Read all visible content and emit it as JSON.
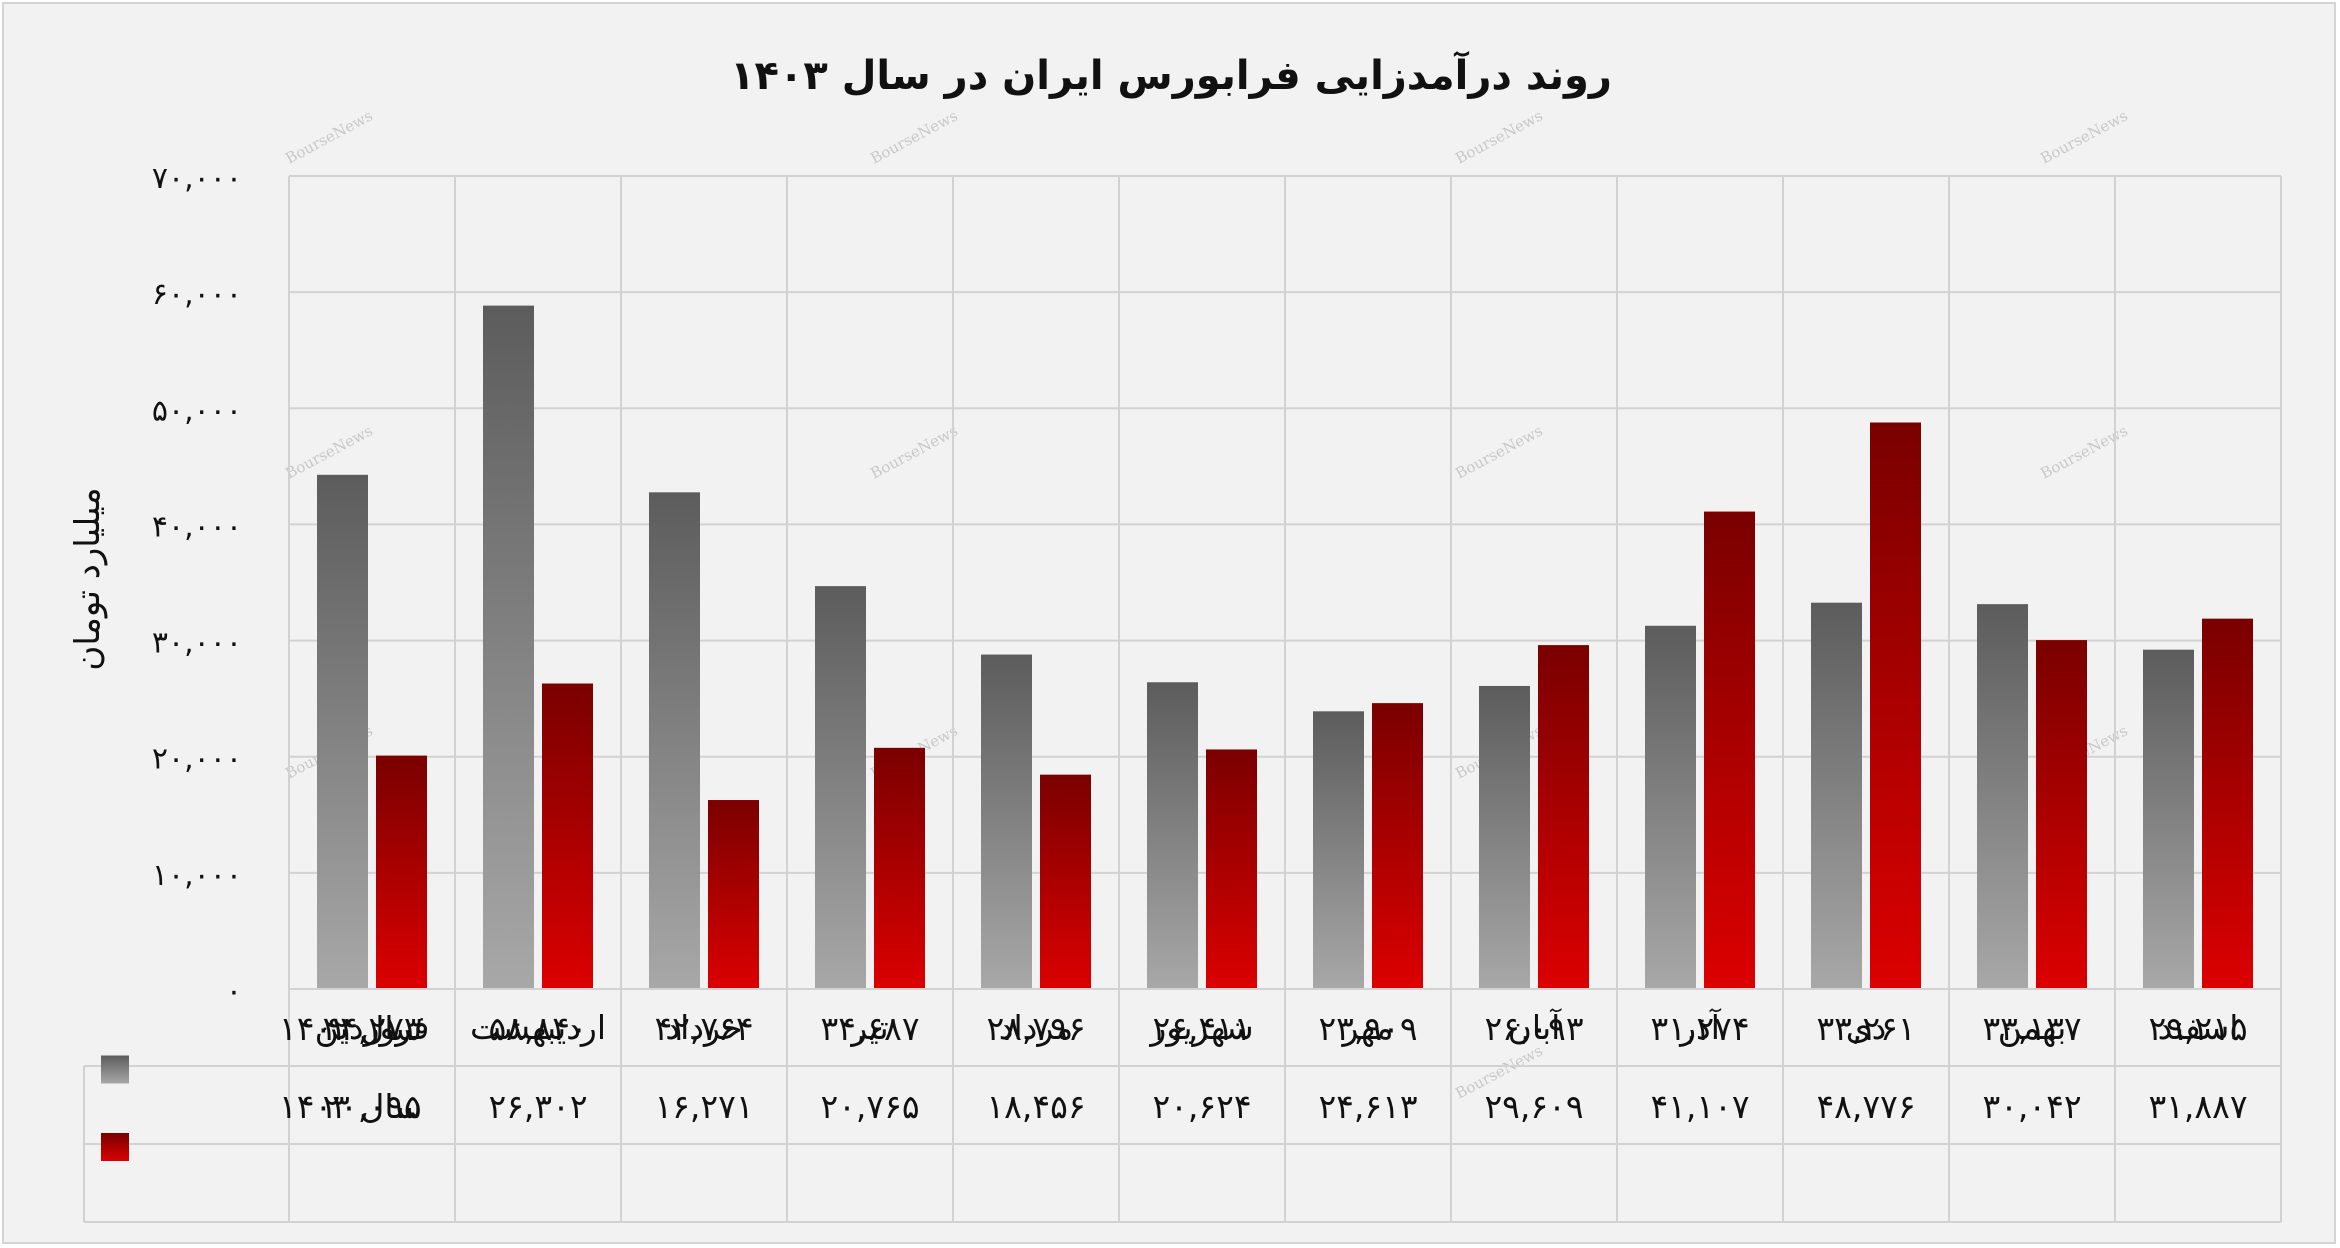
{
  "title": "روند درآمدزایی فرابورس ایران در سال ۱۴۰۳",
  "watermark": "BourseNews",
  "chart_data": {
    "type": "bar",
    "title": "روند درآمدزایی فرابورس ایران در سال ۱۴۰۳",
    "ylabel": "میلیارد تومان",
    "ylim": [
      0,
      70000
    ],
    "yticks": [
      0,
      10000,
      20000,
      30000,
      40000,
      50000,
      60000,
      70000
    ],
    "ytick_labels": [
      "۰",
      "۱۰,۰۰۰",
      "۲۰,۰۰۰",
      "۳۰,۰۰۰",
      "۴۰,۰۰۰",
      "۵۰,۰۰۰",
      "۶۰,۰۰۰",
      "۷۰,۰۰۰"
    ],
    "categories": [
      "فروردین",
      "اردیبهشت",
      "خرداد",
      "تیر",
      "مرداد",
      "شهریور",
      "مهر",
      "آبان",
      "آذر",
      "دی",
      "بهمن",
      "اسفند"
    ],
    "series": [
      {
        "name": "سال ۱۴۰۲",
        "color": "#6e6e6e",
        "values": [
          44273,
          58840,
          42764,
          34687,
          28796,
          26411,
          23909,
          26093,
          31274,
          33261,
          33137,
          29215
        ],
        "labels": [
          "۴۴,۲۷۳",
          "۵۸,۸۴۰",
          "۴۲,۷۶۴",
          "۳۴,۶۸۷",
          "۲۸,۷۹۶",
          "۲۶,۴۱۱",
          "۲۳,۹۰۹",
          "۲۶,۰۹۳",
          "۳۱,۲۷۴",
          "۳۳,۲۶۱",
          "۳۳,۱۳۷",
          "۲۹,۲۱۵"
        ]
      },
      {
        "name": "سال ۱۴۰۳",
        "color": "#b00000",
        "values": [
          20095,
          26302,
          16271,
          20765,
          18456,
          20624,
          24613,
          29609,
          41107,
          48776,
          30042,
          31887
        ],
        "labels": [
          "۲۰,۰۹۵",
          "۲۶,۳۰۲",
          "۱۶,۲۷۱",
          "۲۰,۷۶۵",
          "۱۸,۴۵۶",
          "۲۰,۶۲۴",
          "۲۴,۶۱۳",
          "۲۹,۶۰۹",
          "۴۱,۱۰۷",
          "۴۸,۷۷۶",
          "۳۰,۰۴۲",
          "۳۱,۸۸۷"
        ]
      }
    ],
    "grid": true,
    "data_table": true,
    "legend": "table-left"
  }
}
